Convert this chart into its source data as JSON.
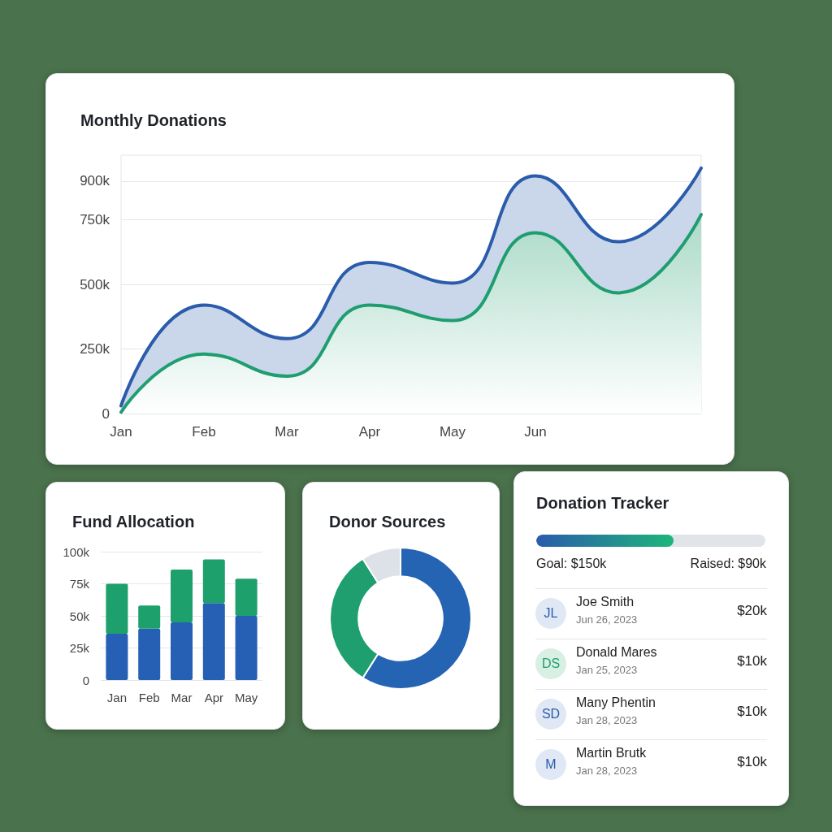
{
  "chart_data": [
    {
      "type": "area",
      "title": "Monthly Donations",
      "categories": [
        "Jan",
        "Feb",
        "Mar",
        "Apr",
        "May",
        "Jun",
        null,
        null
      ],
      "series": [
        {
          "color": "#2a5cab",
          "values": [
            30000,
            420000,
            290000,
            585000,
            505000,
            920000,
            665000,
            950000
          ]
        },
        {
          "color": "#1e9e6f",
          "values": [
            5000,
            230000,
            145000,
            420000,
            360000,
            700000,
            467000,
            770000
          ]
        }
      ],
      "ylim": [
        0,
        1000000
      ],
      "yticks": [
        0,
        {
          "value": 250000,
          "label": "250k"
        },
        {
          "value": 500000,
          "label": "500k"
        },
        {
          "value": 750000,
          "label": "750k"
        },
        {
          "value": 900000,
          "label": "900k"
        }
      ],
      "grid": "y",
      "marker": "none"
    },
    {
      "type": "bar",
      "title": "Fund Allocation",
      "categories": [
        "Jan",
        "Feb",
        "Mar",
        "Apr",
        "May"
      ],
      "stacked": true,
      "series": [
        {
          "color": "#2660b5",
          "values": [
            36000,
            40000,
            45000,
            60000,
            50000
          ]
        },
        {
          "color": "#1ea06c",
          "values": [
            39000,
            18000,
            41000,
            34000,
            29000
          ]
        }
      ],
      "ylim": [
        0,
        100000
      ],
      "yticks": [
        0,
        {
          "value": 25000,
          "label": "25k"
        },
        {
          "value": 50000,
          "label": "50k"
        },
        {
          "value": 75000,
          "label": "75k"
        },
        {
          "value": 100000,
          "label": "100k"
        }
      ],
      "grid": "y"
    },
    {
      "type": "donut",
      "title": "Donor Sources",
      "categories": [
        null,
        null,
        null
      ],
      "values": [
        59,
        32,
        9
      ],
      "colors": [
        "#2563b3",
        "#1f9e6f",
        "#dde1e8"
      ]
    },
    {
      "type": "other",
      "title": "Donation Tracker",
      "annotations": [
        "Goal: $150k",
        "Raised: $90k",
        "JL",
        "Joe Smith",
        "Jun 26, 2023",
        "$20k",
        "DS",
        "Donald Mares",
        "Jan 25, 2023",
        "$10k",
        "SD",
        "Many Phentin",
        "Jan 28, 2023",
        "$10k",
        "M",
        "Martin Brutk",
        "Jan 28, 2023",
        "$10k"
      ]
    }
  ]
}
